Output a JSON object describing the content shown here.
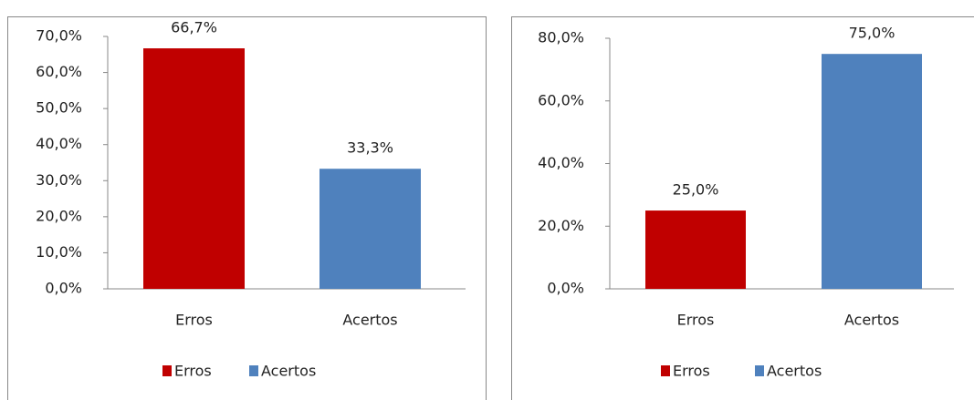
{
  "chart_data": [
    {
      "type": "bar",
      "categories": [
        "Erros",
        "Acertos"
      ],
      "values": [
        66.7,
        33.3
      ],
      "value_labels": [
        "66,7%",
        "33,3%"
      ],
      "colors": [
        "#c00000",
        "#4f81bd"
      ],
      "ylim": [
        0,
        70
      ],
      "yticks": [
        {
          "value": 0,
          "label": "0,0%"
        },
        {
          "value": 10,
          "label": "10,0%"
        },
        {
          "value": 20,
          "label": "20,0%"
        },
        {
          "value": 30,
          "label": "30,0%"
        },
        {
          "value": 40,
          "label": "40,0%"
        },
        {
          "value": 50,
          "label": "50,0%"
        },
        {
          "value": 60,
          "label": "60,0%"
        },
        {
          "value": 70,
          "label": "70,0%"
        }
      ],
      "grid": false,
      "legend": "bottom"
    },
    {
      "type": "bar",
      "categories": [
        "Erros",
        "Acertos"
      ],
      "values": [
        25.0,
        75.0
      ],
      "value_labels": [
        "25,0%",
        "75,0%"
      ],
      "colors": [
        "#c00000",
        "#4f81bd"
      ],
      "ylim": [
        0,
        80
      ],
      "yticks": [
        {
          "value": 0,
          "label": "0,0%"
        },
        {
          "value": 20,
          "label": "20,0%"
        },
        {
          "value": 40,
          "label": "40,0%"
        },
        {
          "value": 60,
          "label": "60,0%"
        },
        {
          "value": 80,
          "label": "80,0%"
        }
      ],
      "grid": false,
      "legend": "bottom"
    }
  ]
}
